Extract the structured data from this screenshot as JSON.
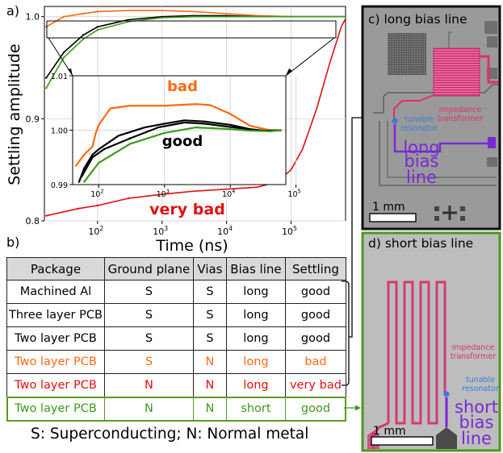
{
  "panel_labels": {
    "a": "a)",
    "b": "b)",
    "c": "c) long bias line",
    "d": "d) short bias line"
  },
  "colors": {
    "bad": "#ff6a14",
    "very_bad": "#e01010",
    "good_black": "#000000",
    "good_green": "#3c9a1e",
    "impedance": "#e0306a",
    "resonator": "#3a7adf",
    "bias": "#7a28d6",
    "highlight_box": "#5a9a22"
  },
  "chart_data": [
    {
      "type": "line",
      "title": "",
      "xlabel": "Time (ns)",
      "ylabel": "Settling amplitude",
      "x_scale": "log",
      "xlim": [
        15,
        700000
      ],
      "ylim": [
        0.8,
        1.01
      ],
      "yticks": [
        "0.8",
        "0.9",
        "1.0"
      ],
      "xticks": [
        "10^2",
        "10^3",
        "10^4",
        "10^5"
      ],
      "annotations": [
        "very bad"
      ],
      "series": [
        {
          "color": "#e01010",
          "label_on_chart": "very bad",
          "points": [
            [
              16,
              0.805
            ],
            [
              50,
              0.812
            ],
            [
              100,
              0.815
            ],
            [
              300,
              0.822
            ],
            [
              1000,
              0.826
            ],
            [
              3000,
              0.829
            ],
            [
              10000,
              0.831
            ],
            [
              30000,
              0.833
            ],
            [
              60000,
              0.838
            ],
            [
              100000,
              0.85
            ],
            [
              150000,
              0.87
            ],
            [
              250000,
              0.91
            ],
            [
              400000,
              0.955
            ],
            [
              600000,
              0.99
            ],
            [
              700000,
              0.998
            ]
          ]
        },
        {
          "color": "#ff6a14",
          "points": [
            [
              16,
              0.99
            ],
            [
              30,
              1.0
            ],
            [
              60,
              1.003
            ],
            [
              100,
              1.005
            ],
            [
              300,
              1.006
            ],
            [
              1000,
              1.006
            ],
            [
              3000,
              1.005
            ],
            [
              10000,
              1.003
            ],
            [
              30000,
              1.001
            ],
            [
              100000,
              1.0
            ],
            [
              700000,
              1.0
            ]
          ]
        },
        {
          "color": "#000000",
          "points": [
            [
              16,
              0.94
            ],
            [
              30,
              0.965
            ],
            [
              60,
              0.982
            ],
            [
              100,
              0.99
            ],
            [
              300,
              0.997
            ],
            [
              1000,
              1.0
            ],
            [
              3000,
              1.001
            ],
            [
              10000,
              1.001
            ],
            [
              30000,
              1.0
            ],
            [
              700000,
              1.0
            ]
          ]
        },
        {
          "color": "#3c9a1e",
          "points": [
            [
              16,
              0.93
            ],
            [
              30,
              0.96
            ],
            [
              60,
              0.978
            ],
            [
              100,
              0.987
            ],
            [
              300,
              0.995
            ],
            [
              1000,
              0.999
            ],
            [
              3000,
              1.0
            ],
            [
              10000,
              1.0
            ],
            [
              30000,
              1.0
            ],
            [
              700000,
              1.0
            ]
          ]
        }
      ]
    },
    {
      "type": "line",
      "title": "",
      "xlabel": "",
      "ylabel": "",
      "x_scale": "log",
      "xlim": [
        40,
        70000
      ],
      "ylim": [
        0.99,
        1.01
      ],
      "yticks": [
        "0.99",
        "1.00",
        "1.01"
      ],
      "xticks": [
        "10^2",
        "10^3",
        "10^4",
        "10^5"
      ],
      "annotations": [
        "bad",
        "good"
      ],
      "series": [
        {
          "color": "#ff6a14",
          "label_on_chart": "bad",
          "points": [
            [
              45,
              0.9935
            ],
            [
              60,
              0.9955
            ],
            [
              80,
              0.997
            ],
            [
              90,
              0.9995
            ],
            [
              100,
              1.001
            ],
            [
              150,
              1.004
            ],
            [
              300,
              1.0045
            ],
            [
              1000,
              1.0045
            ],
            [
              3000,
              1.0048
            ],
            [
              5000,
              1.0046
            ],
            [
              10000,
              1.003
            ],
            [
              20000,
              1.0008
            ],
            [
              40000,
              1.0
            ],
            [
              60000,
              1.0
            ]
          ]
        },
        {
          "color": "#000000",
          "label_on_chart": "good",
          "points": [
            [
              50,
              0.9905
            ],
            [
              60,
              0.993
            ],
            [
              80,
              0.9955
            ],
            [
              100,
              0.9965
            ],
            [
              200,
              0.999
            ],
            [
              500,
              1.0005
            ],
            [
              1000,
              1.0012
            ],
            [
              2000,
              1.0018
            ],
            [
              4000,
              1.0016
            ],
            [
              10000,
              1.001
            ],
            [
              20000,
              1.0002
            ],
            [
              40000,
              0.9998
            ],
            [
              60000,
              1.0
            ]
          ]
        },
        {
          "color": "#000000",
          "points": [
            [
              55,
              0.9915
            ],
            [
              80,
              0.995
            ],
            [
              120,
              0.9965
            ],
            [
              300,
              0.9985
            ],
            [
              800,
              1.0005
            ],
            [
              2000,
              1.0014
            ],
            [
              4000,
              1.0012
            ],
            [
              10000,
              1.0006
            ],
            [
              30000,
              0.9999
            ],
            [
              60000,
              1.0
            ]
          ]
        },
        {
          "color": "#3c9a1e",
          "points": [
            [
              60,
              0.9905
            ],
            [
              80,
              0.9925
            ],
            [
              100,
              0.994
            ],
            [
              300,
              0.9975
            ],
            [
              1000,
              0.9995
            ],
            [
              3000,
              1.0005
            ],
            [
              10000,
              1.0002
            ],
            [
              20000,
              0.9999
            ],
            [
              40000,
              0.9998
            ],
            [
              60000,
              1.0
            ]
          ]
        }
      ]
    }
  ],
  "table": {
    "headers": [
      "Package",
      "Ground plane",
      "Vias",
      "Bias line",
      "Settling"
    ],
    "rows": [
      {
        "color": "#000000",
        "cells": [
          "Machined Al",
          "S",
          "S",
          "long",
          "good"
        ]
      },
      {
        "color": "#000000",
        "cells": [
          "Three layer PCB",
          "S",
          "S",
          "long",
          "good"
        ]
      },
      {
        "color": "#000000",
        "cells": [
          "Two layer PCB",
          "S",
          "S",
          "long",
          "good"
        ]
      },
      {
        "color": "#ff6a14",
        "cells": [
          "Two layer PCB",
          "S",
          "N",
          "long",
          "bad"
        ]
      },
      {
        "color": "#e01010",
        "cells": [
          "Two layer PCB",
          "N",
          "N",
          "long",
          "very bad"
        ]
      },
      {
        "color": "#3c9a1e",
        "cells": [
          "Two layer PCB",
          "N",
          "N",
          "short",
          "good"
        ]
      }
    ],
    "legend": "S: Superconducting; N: Normal metal"
  },
  "micrograph_c": {
    "impedance_label": "impedance\ntransformer",
    "resonator_label": "tunable\nresonator",
    "bias_label": "long\nbias\nline",
    "scale": "1 mm"
  },
  "micrograph_d": {
    "impedance_label": "impedance\ntransformer",
    "resonator_label": "tunable\nresonator",
    "bias_label": "short\nbias\nline",
    "scale": "1 mm"
  }
}
